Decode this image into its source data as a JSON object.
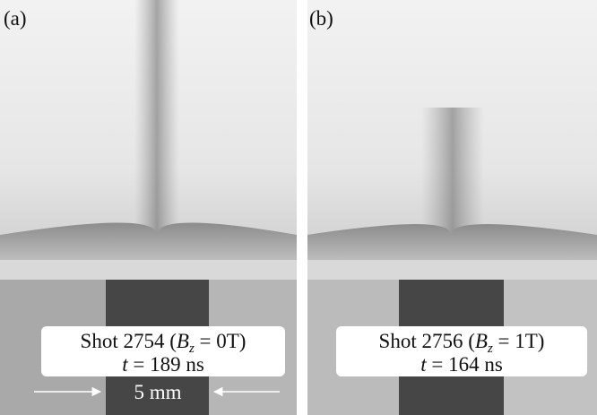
{
  "panels": [
    {
      "label": "(a)",
      "caption": {
        "shot": "Shot 2754 (",
        "symbol": "B",
        "subscript": "z",
        "field": " = 0T)",
        "time_symbol": "t",
        "time": " = 189 ns"
      },
      "scale": "5 mm"
    },
    {
      "label": "(b)",
      "caption": {
        "shot": "Shot 2756 (",
        "symbol": "B",
        "subscript": "z",
        "field": " = 1T)",
        "time_symbol": "t",
        "time": " = 164 ns"
      }
    }
  ]
}
